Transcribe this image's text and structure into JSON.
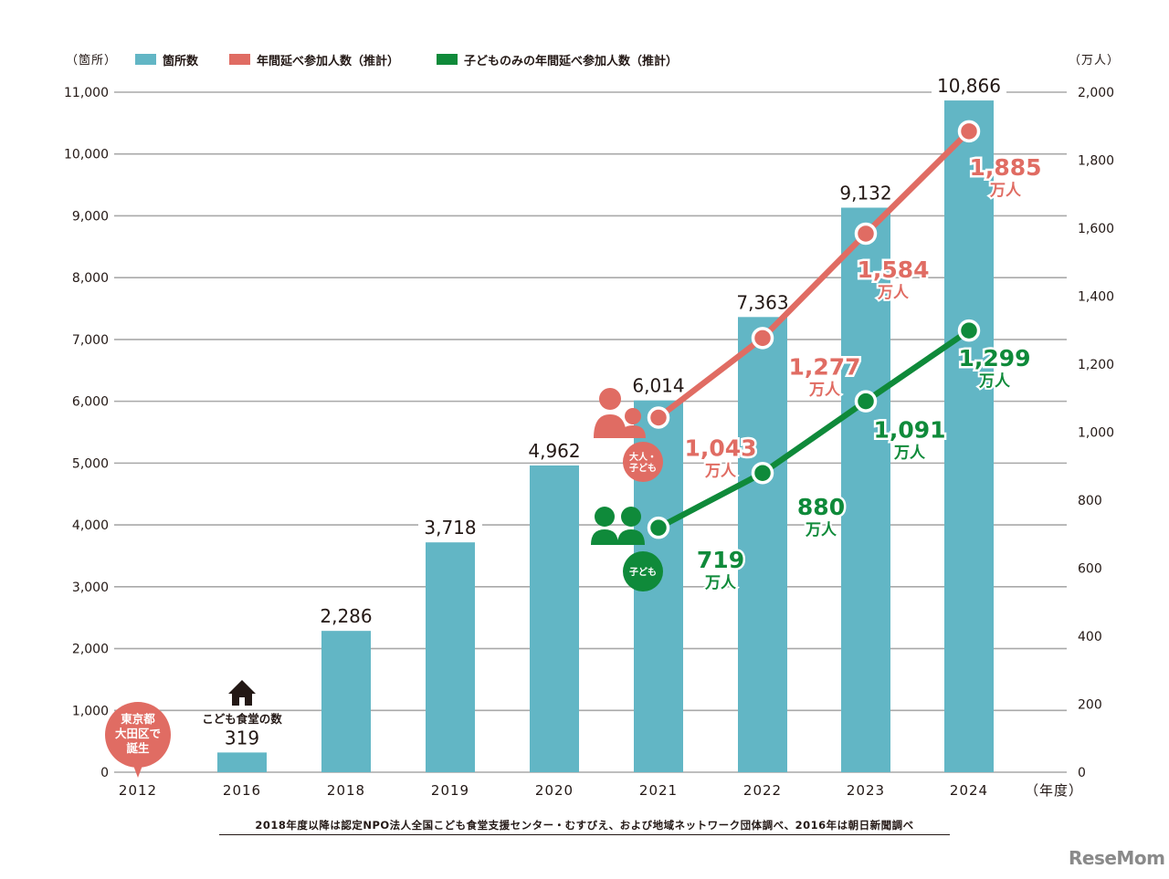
{
  "chart_data": {
    "type": "bar",
    "categories": [
      "2012",
      "2016",
      "2018",
      "2019",
      "2020",
      "2021",
      "2022",
      "2023",
      "2024"
    ],
    "xlabel_unit": "（年度）",
    "y_left_unit": "（箇所）",
    "y_right_unit": "（万人）",
    "y_left_lim": [
      0,
      11000
    ],
    "y_left_ticks": [
      "0",
      "1,000",
      "2,000",
      "3,000",
      "4,000",
      "5,000",
      "6,000",
      "7,000",
      "8,000",
      "9,000",
      "10,000",
      "11,000"
    ],
    "y_right_lim": [
      0,
      2000
    ],
    "y_right_ticks": [
      "0",
      "200",
      "400",
      "600",
      "800",
      "1,000",
      "1,200",
      "1,400",
      "1,600",
      "1,800",
      "2,000"
    ],
    "grid": true,
    "legend_position": "top",
    "series": [
      {
        "name": "箇所数",
        "kind": "bar",
        "axis": "left",
        "color": "#62b6c5",
        "values": [
          null,
          319,
          2286,
          3718,
          4962,
          6014,
          7363,
          9132,
          10866
        ],
        "labels": [
          "",
          "319",
          "2,286",
          "3,718",
          "4,962",
          "6,014",
          "7,363",
          "9,132",
          "10,866"
        ]
      },
      {
        "name": "年間延べ参加人数（推計）",
        "kind": "line",
        "axis": "right",
        "color": "#e06c63",
        "x": [
          "2021",
          "2022",
          "2023",
          "2024"
        ],
        "values": [
          1043,
          1277,
          1584,
          1885
        ],
        "labels": [
          "1,043",
          "1,277",
          "1,584",
          "1,885"
        ],
        "unit": "万人"
      },
      {
        "name": "子どものみの年間延べ参加人数（推計）",
        "kind": "line",
        "axis": "right",
        "color": "#0f8a3a",
        "x": [
          "2021",
          "2022",
          "2023",
          "2024"
        ],
        "values": [
          719,
          880,
          1091,
          1299
        ],
        "labels": [
          "719",
          "880",
          "1,091",
          "1,299"
        ],
        "unit": "万人"
      }
    ],
    "annotations": {
      "origin_badge_lines": [
        "東京都",
        "大田区で",
        "誕生"
      ],
      "house_caption": "こども食堂の数",
      "adult_badge_lines": [
        "大人・",
        "子ども"
      ],
      "child_badge": "子ども"
    },
    "source_note": "2018年度以降は認定NPO法人全国こども食堂支援センター・むすびえ、および地域ネットワーク団体調べ、2016年は朝日新聞調べ"
  },
  "watermark": "ReseMom"
}
